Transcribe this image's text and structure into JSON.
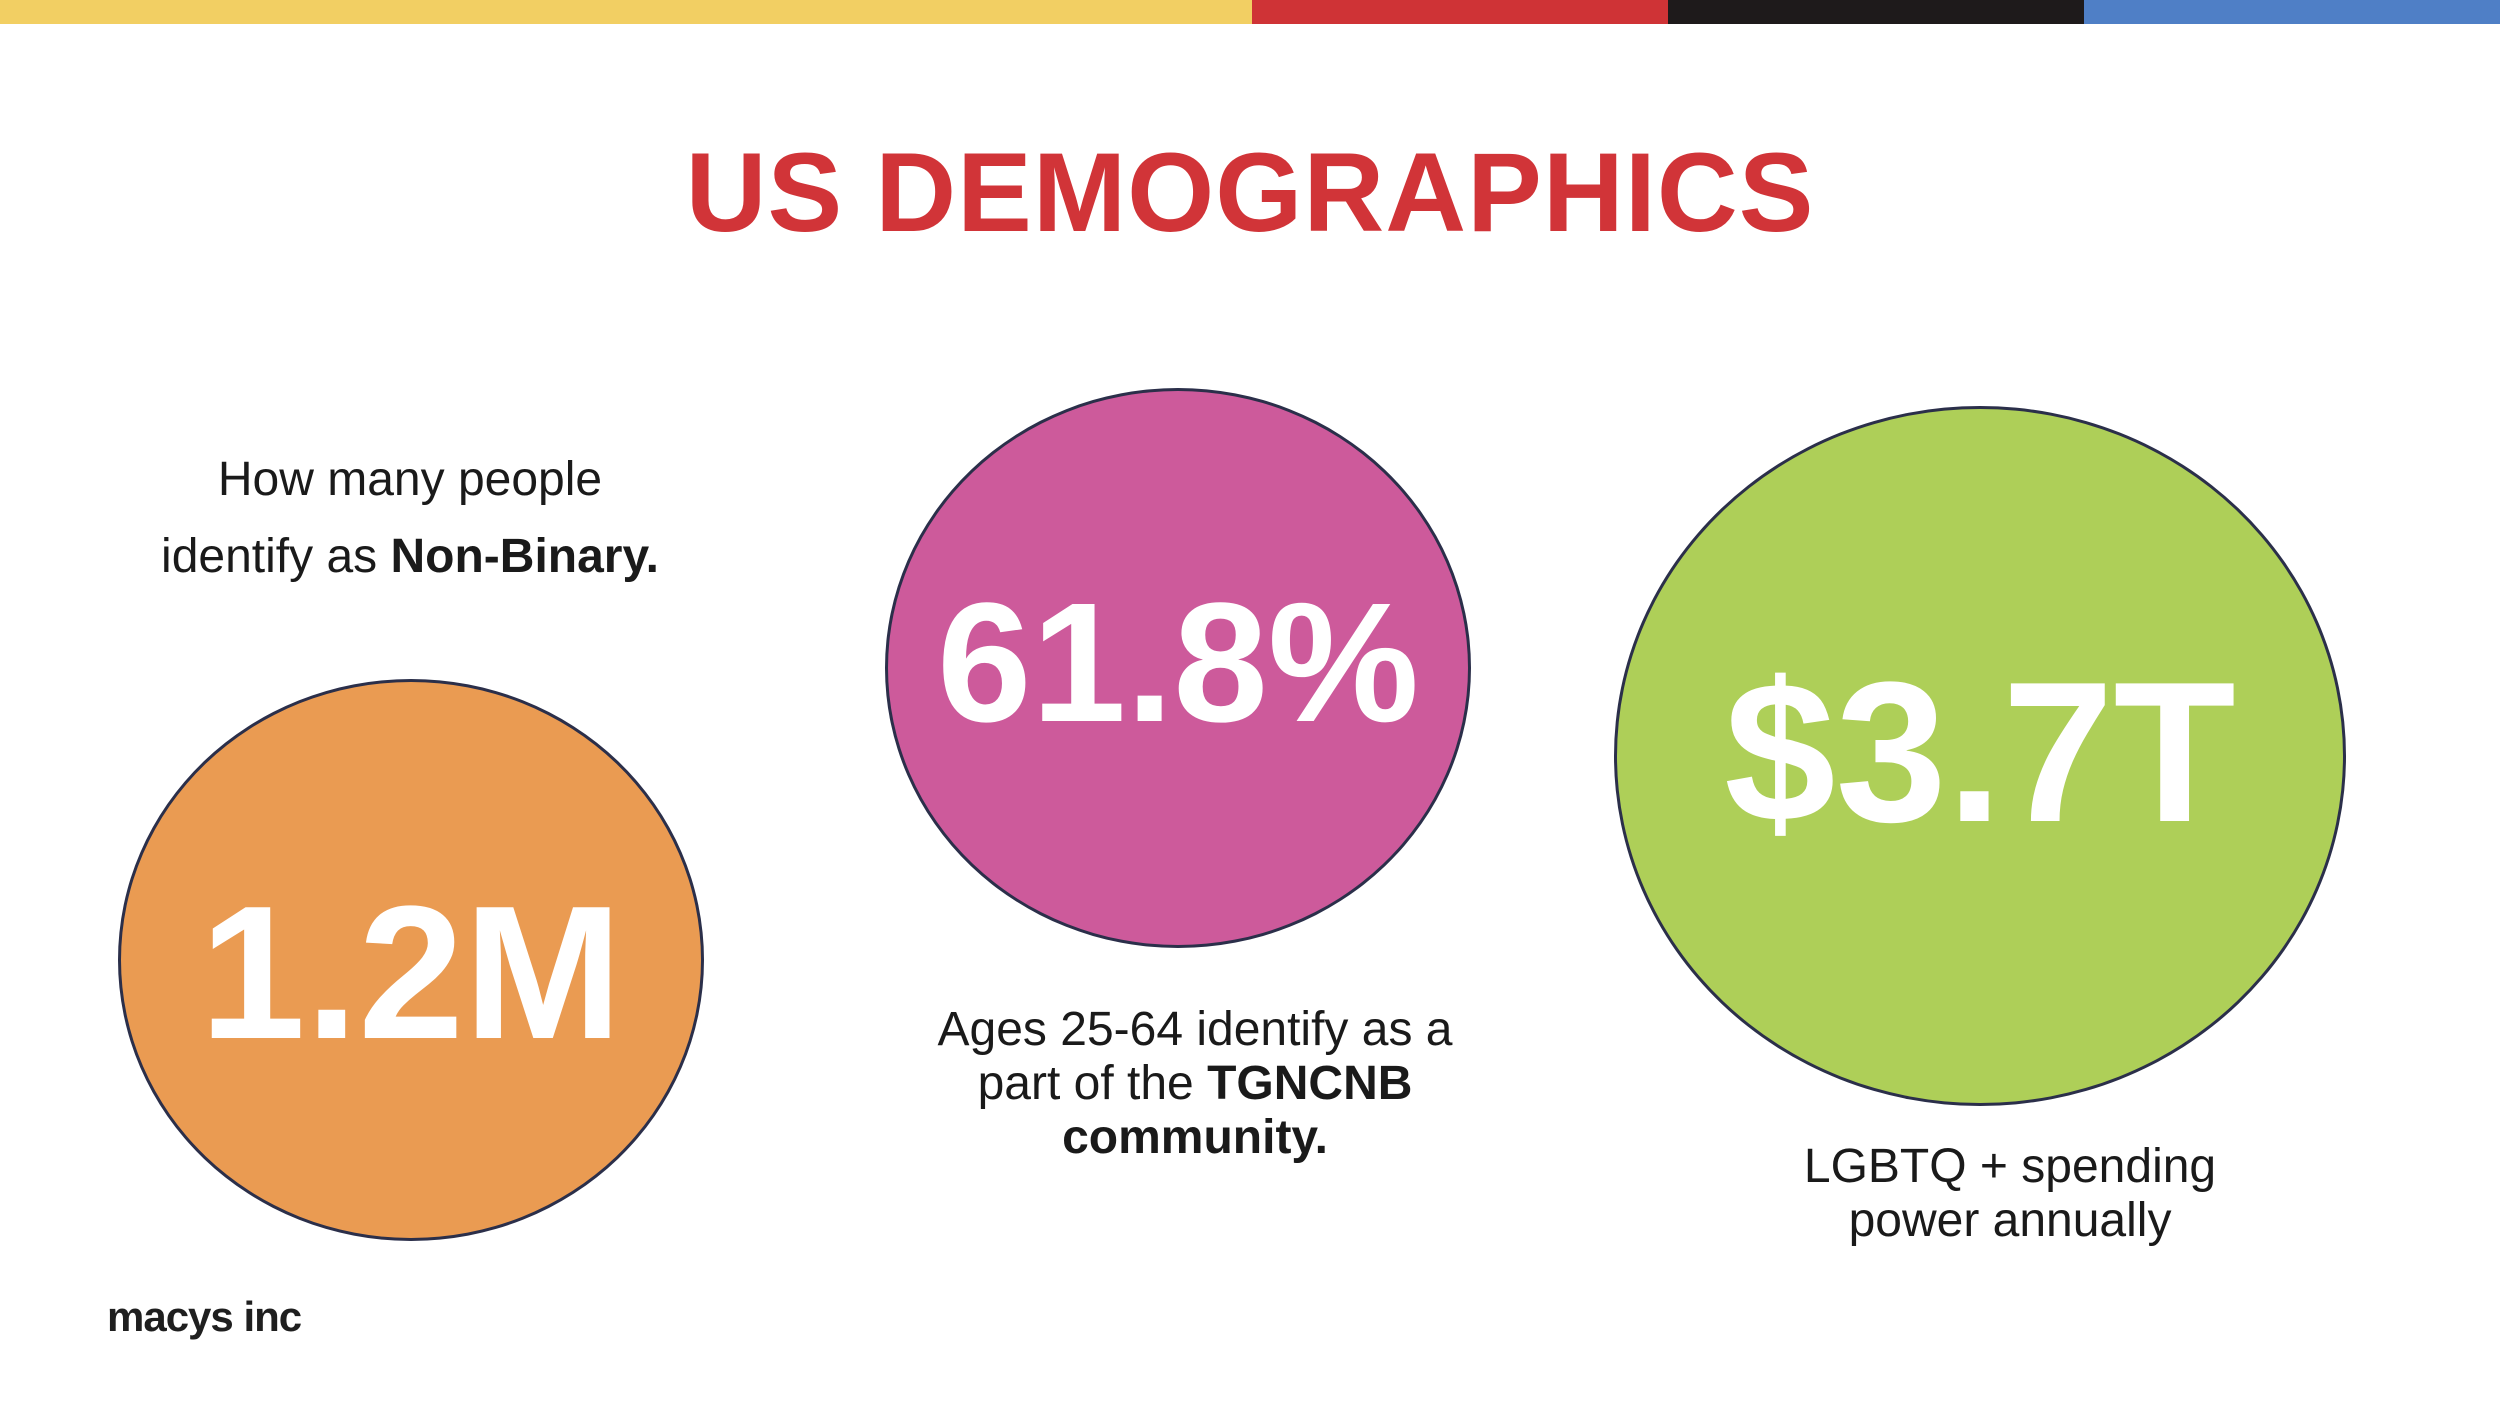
{
  "colors": {
    "title": "#d13438",
    "bar_yellow": "#f2cf63",
    "bar_red": "#cf3336",
    "bar_black": "#1e1a1b",
    "bar_blue": "#4f7fc6",
    "circle_orange": "#ea9b52",
    "circle_magenta": "#cd5a9b",
    "circle_green": "#aecf58"
  },
  "title": "US DEMOGRAPHICS",
  "stats": [
    {
      "value": "1.2M",
      "caption_parts": [
        "How many people",
        "identify as ",
        "Non-Binary."
      ]
    },
    {
      "value": "61.8%",
      "caption_parts": [
        "Ages 25-64 identify as a",
        "part of the ",
        "TGNCNB",
        "community."
      ]
    },
    {
      "value": "$3.7T",
      "caption_parts": [
        "LGBTQ + spending",
        "power annually"
      ]
    }
  ],
  "logo_text": "macys inc"
}
